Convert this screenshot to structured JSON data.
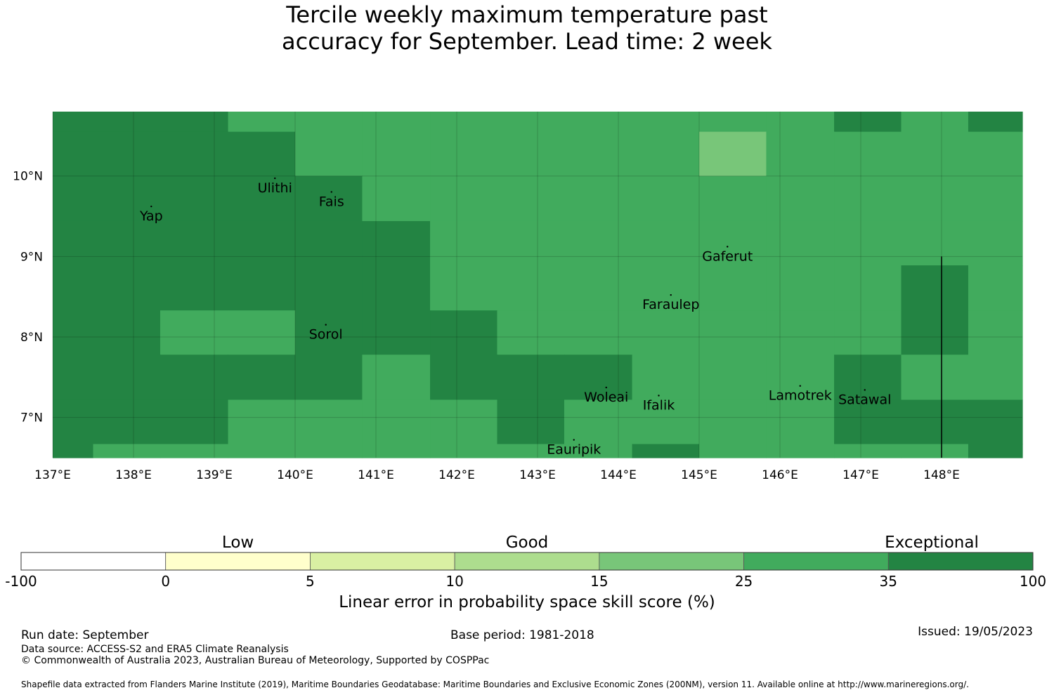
{
  "title_line1": "Tercile weekly maximum temperature past",
  "title_line2": "accuracy for September. Lead time: 2 week",
  "map": {
    "lon_range": [
      137,
      149
    ],
    "lat_range": [
      6.5,
      10.8
    ],
    "lon_ticks": [
      {
        "value": 137,
        "label": "137°E"
      },
      {
        "value": 138,
        "label": "138°E"
      },
      {
        "value": 139,
        "label": "139°E"
      },
      {
        "value": 140,
        "label": "140°E"
      },
      {
        "value": 141,
        "label": "141°E"
      },
      {
        "value": 142,
        "label": "142°E"
      },
      {
        "value": 143,
        "label": "143°E"
      },
      {
        "value": 144,
        "label": "144°E"
      },
      {
        "value": 145,
        "label": "145°E"
      },
      {
        "value": 146,
        "label": "146°E"
      },
      {
        "value": 147,
        "label": "147°E"
      },
      {
        "value": 148,
        "label": "148°E"
      }
    ],
    "lat_ticks": [
      {
        "value": 10,
        "label": "10°N"
      },
      {
        "value": 9,
        "label": "9°N"
      },
      {
        "value": 8,
        "label": "8°N"
      },
      {
        "value": 7,
        "label": "7°N"
      }
    ],
    "cell_lon_edges": [
      137.0,
      137.5,
      138.33,
      139.17,
      140.0,
      140.83,
      141.67,
      142.5,
      143.33,
      144.17,
      145.0,
      145.83,
      146.67,
      147.5,
      148.33,
      149.0
    ],
    "cell_lat_edges": [
      10.8,
      10.55,
      10.0,
      9.44,
      8.89,
      8.33,
      7.78,
      7.22,
      6.67,
      6.5
    ],
    "grid_classes": [
      [
        6,
        6,
        6,
        5,
        5,
        5,
        5,
        5,
        5,
        5,
        5,
        5,
        6,
        5,
        6
      ],
      [
        6,
        6,
        6,
        6,
        5,
        5,
        5,
        5,
        5,
        5,
        4,
        5,
        5,
        5,
        5
      ],
      [
        6,
        6,
        6,
        6,
        6,
        5,
        5,
        5,
        5,
        5,
        5,
        5,
        5,
        5,
        5
      ],
      [
        6,
        6,
        6,
        6,
        6,
        6,
        5,
        5,
        5,
        5,
        5,
        5,
        5,
        5,
        5
      ],
      [
        6,
        6,
        6,
        6,
        6,
        6,
        5,
        5,
        5,
        5,
        5,
        5,
        5,
        6,
        5
      ],
      [
        6,
        6,
        5,
        5,
        6,
        6,
        6,
        5,
        5,
        5,
        5,
        5,
        5,
        6,
        5
      ],
      [
        6,
        6,
        6,
        6,
        6,
        5,
        6,
        6,
        6,
        5,
        5,
        5,
        6,
        5,
        5
      ],
      [
        6,
        6,
        6,
        5,
        5,
        5,
        5,
        6,
        5,
        5,
        5,
        5,
        6,
        6,
        6
      ],
      [
        6,
        5,
        5,
        5,
        5,
        5,
        5,
        5,
        5,
        6,
        5,
        5,
        5,
        5,
        6
      ]
    ],
    "boundary_line": {
      "lon": 148.0,
      "lat_from": 6.5,
      "lat_to": 9.0
    },
    "places": [
      {
        "name": "Yap",
        "lon": 138.22,
        "lat": 9.5
      },
      {
        "name": "Ulithi",
        "lon": 139.75,
        "lat": 9.85
      },
      {
        "name": "Fais",
        "lon": 140.45,
        "lat": 9.68
      },
      {
        "name": "Gaferut",
        "lon": 145.35,
        "lat": 9.0
      },
      {
        "name": "Faraulep",
        "lon": 144.65,
        "lat": 8.4
      },
      {
        "name": "Sorol",
        "lon": 140.38,
        "lat": 8.03
      },
      {
        "name": "Woleai",
        "lon": 143.85,
        "lat": 7.25
      },
      {
        "name": "Ifalik",
        "lon": 144.5,
        "lat": 7.15
      },
      {
        "name": "Lamotrek",
        "lon": 146.25,
        "lat": 7.27
      },
      {
        "name": "Satawal",
        "lon": 147.05,
        "lat": 7.22
      },
      {
        "name": "Eauripik",
        "lon": 143.45,
        "lat": 6.6
      }
    ]
  },
  "legend": {
    "colors": [
      "#ffffff",
      "#ffffcc",
      "#d9f0a3",
      "#addd8e",
      "#78c679",
      "#41ab5d",
      "#238443"
    ],
    "ticks": [
      "-100",
      "0",
      "5",
      "10",
      "15",
      "25",
      "35",
      "100"
    ],
    "categories": [
      {
        "label": "Low",
        "bin": 1.5
      },
      {
        "label": "Good",
        "bin": 3.5
      },
      {
        "label": "Exceptional",
        "bin": 6.3
      }
    ],
    "title": "Linear error in probability space skill score (%)"
  },
  "footer": {
    "run_date": "Run date: September",
    "base_period": "Base period: 1981-2018",
    "issued": "Issued: 19/05/2023",
    "data_source": "Data source: ACCESS-S2 and ERA5 Climate Reanalysis",
    "copyright": "© Commonwealth of Australia 2023, Australian Bureau of Meteorology, Supported by COSPPac",
    "shapefile": "Shapefile data extracted from Flanders Marine Institute (2019), Maritime Boundaries Geodatabase: Maritime Boundaries and Exclusive Economic Zones (200NM), version 11. Available online at http://www.marineregions.org/."
  }
}
